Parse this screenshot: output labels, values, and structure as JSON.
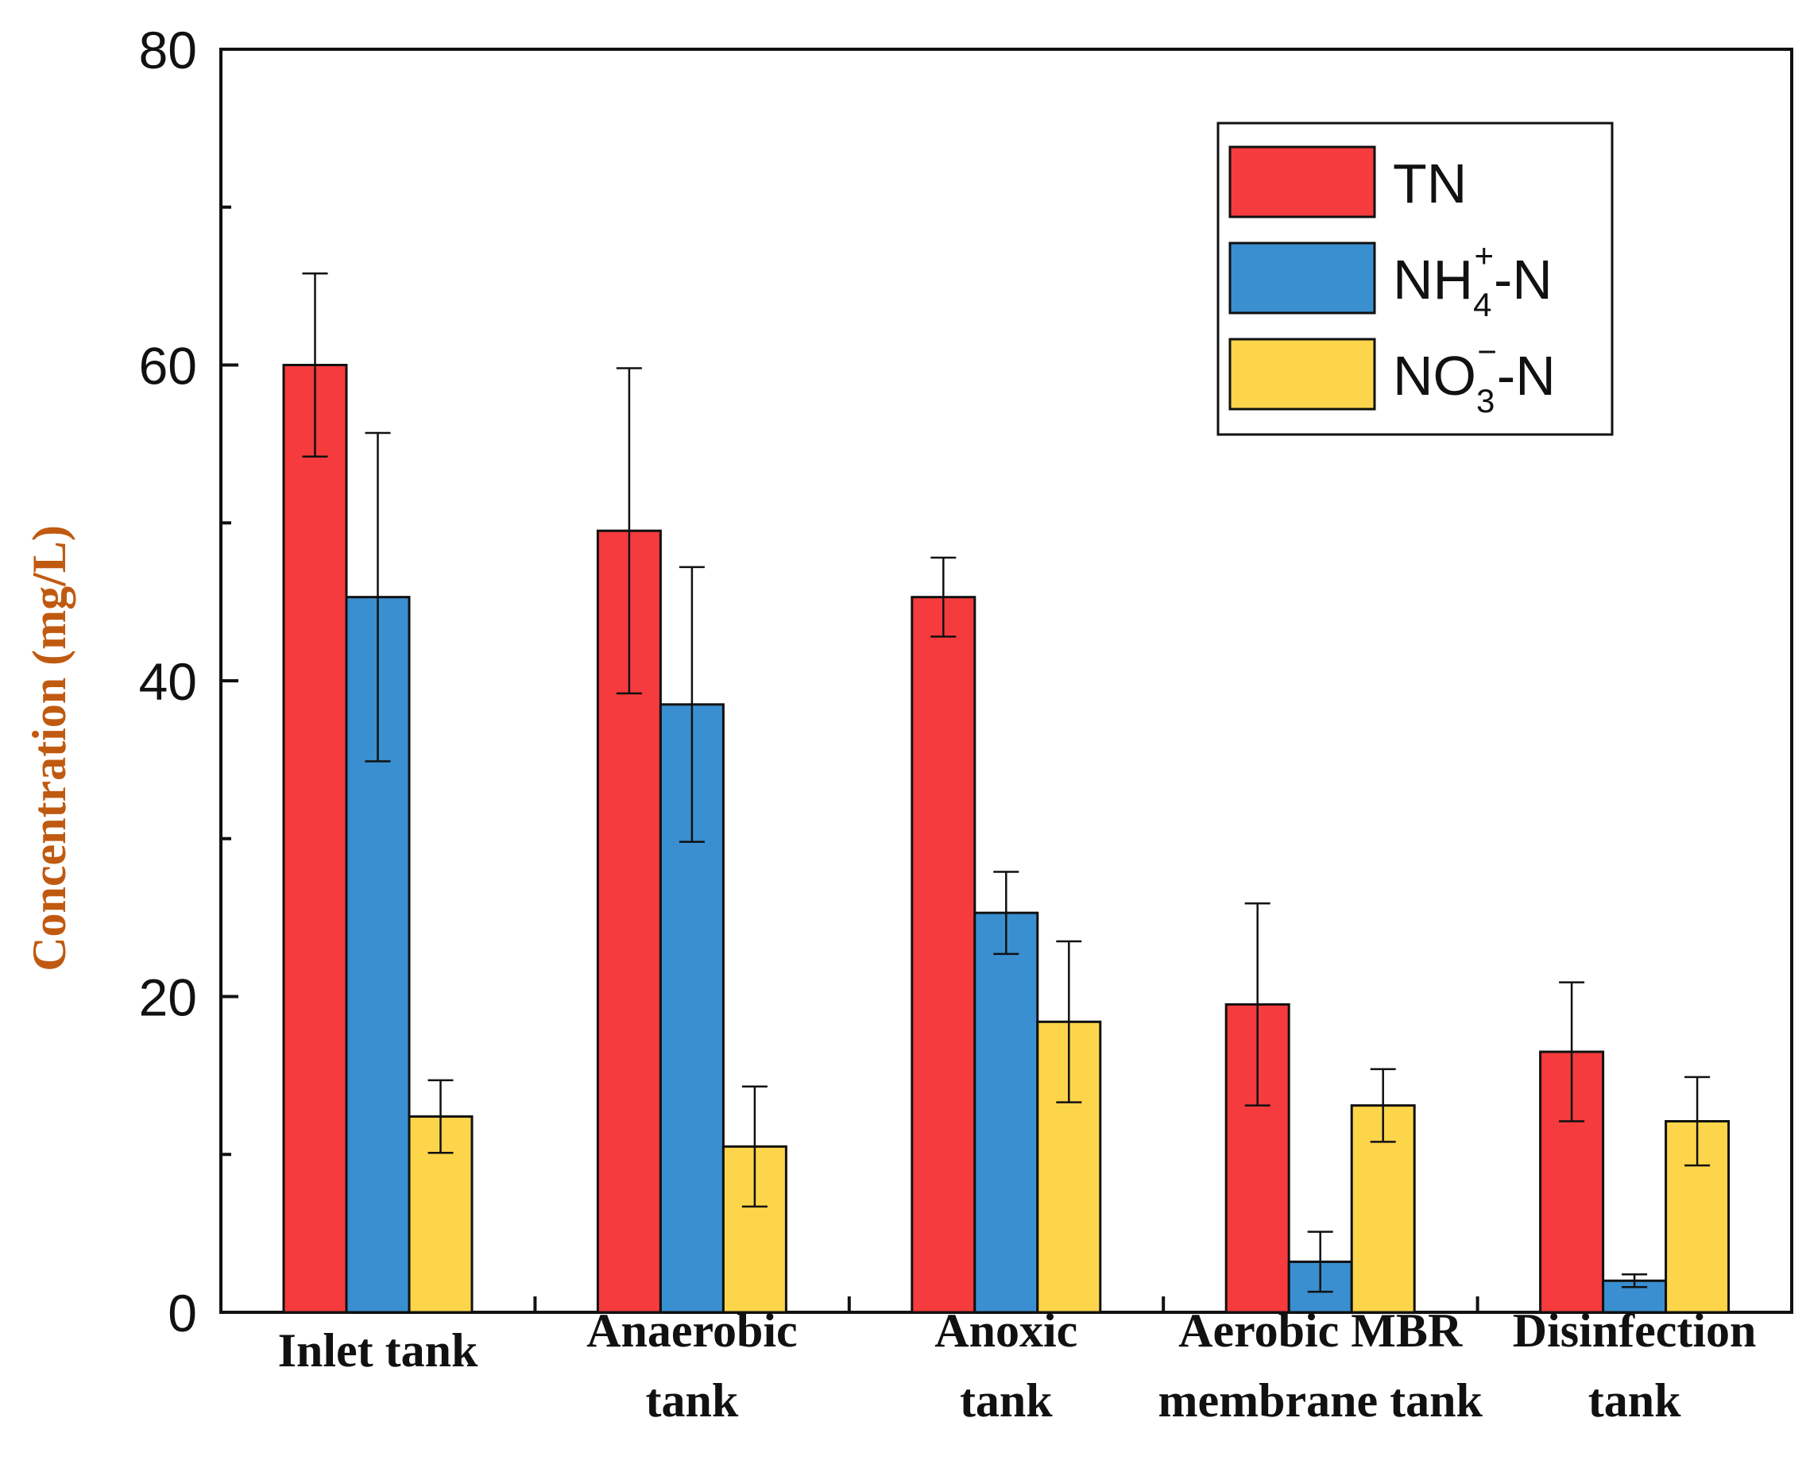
{
  "chart_data": {
    "type": "bar",
    "title": "",
    "xlabel": "",
    "ylabel": "Concentration (mg/L)",
    "ylim": [
      0,
      80
    ],
    "yticks": [
      0,
      20,
      40,
      60,
      80
    ],
    "grid": false,
    "legend_position": "top-right",
    "categories": [
      [
        "Inlet tank"
      ],
      [
        "Anaerobic",
        "tank"
      ],
      [
        "Anoxic",
        "tank"
      ],
      [
        "Aerobic MBR",
        "membrane tank"
      ],
      [
        "Disinfection",
        "tank"
      ]
    ],
    "series": [
      {
        "name": "TN",
        "legend": {
          "base": "TN",
          "sub": "",
          "sup": "",
          "suffix": ""
        },
        "color": "#f53b3d",
        "values": [
          60,
          49.5,
          45.3,
          19.5,
          16.5
        ],
        "errors": [
          5.8,
          10.3,
          2.5,
          6.4,
          4.4
        ]
      },
      {
        "name": "NH4+-N",
        "legend": {
          "base": "NH",
          "sub": "4",
          "sup": "+",
          "suffix": "-N"
        },
        "color": "#3a8fd0",
        "values": [
          45.3,
          38.5,
          25.3,
          3.2,
          2
        ],
        "errors": [
          10.4,
          8.7,
          2.6,
          1.9,
          0.4
        ]
      },
      {
        "name": "NO3--N",
        "legend": {
          "base": "NO",
          "sub": "3",
          "sup": "−",
          "suffix": "-N"
        },
        "color": "#fdd54a",
        "values": [
          12.4,
          10.5,
          18.4,
          13.1,
          12.1
        ],
        "errors": [
          2.3,
          3.8,
          5.1,
          2.3,
          2.8
        ]
      }
    ]
  }
}
